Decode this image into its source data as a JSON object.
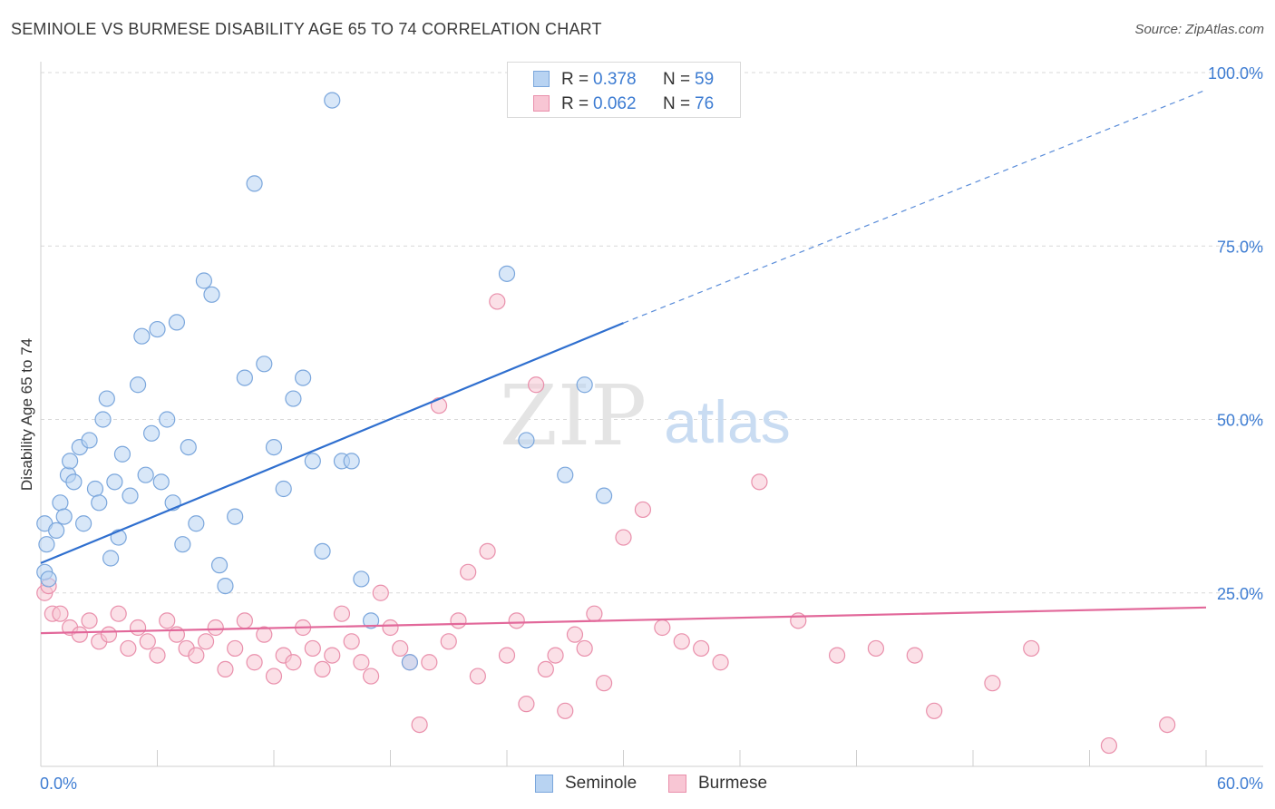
{
  "header": {
    "title": "SEMINOLE VS BURMESE DISABILITY AGE 65 TO 74 CORRELATION CHART",
    "source": "Source: ZipAtlas.com"
  },
  "watermark": {
    "zip": "ZIP",
    "atlas": "atlas"
  },
  "legend_top": {
    "rows": [
      {
        "r_label": "R =",
        "r_value": "0.378",
        "n_label": "N =",
        "n_value": "59"
      },
      {
        "r_label": "R =",
        "r_value": "0.062",
        "n_label": "N =",
        "n_value": "76"
      }
    ]
  },
  "legend_bottom": {
    "items": [
      "Seminole",
      "Burmese"
    ]
  },
  "colors": {
    "seminole_fill": "#b8d3f2",
    "seminole_stroke": "#7aa6dc",
    "seminole_line": "#2f6fcf",
    "burmese_fill": "#f8c6d4",
    "burmese_stroke": "#e98fab",
    "burmese_line": "#e2689a",
    "axis_label": "#3d7cd2",
    "grid": "#d9d9d9"
  },
  "chart_data": {
    "type": "scatter",
    "title": "SEMINOLE VS BURMESE DISABILITY AGE 65 TO 74 CORRELATION CHART",
    "xlabel": "",
    "ylabel": "Disability Age 65 to 74",
    "xlim": [
      0,
      60
    ],
    "ylim": [
      0,
      100
    ],
    "x_tick_labels": [
      "0.0%",
      "60.0%"
    ],
    "y_tick_labels": [
      "100.0%",
      "75.0%",
      "50.0%",
      "25.0%"
    ],
    "y_ticks": [
      100,
      75,
      50,
      25
    ],
    "grid": true,
    "legend_position": "top-center",
    "series": [
      {
        "name": "Seminole",
        "r": 0.378,
        "n": 59,
        "trend": {
          "x": [
            0,
            30
          ],
          "y": [
            29.3,
            63.9
          ],
          "dashed_extension_to_x": 60,
          "dashed_extension_y": 97.5
        },
        "points": [
          [
            0.2,
            28
          ],
          [
            0.3,
            32
          ],
          [
            0.2,
            35
          ],
          [
            0.4,
            27
          ],
          [
            0.8,
            34
          ],
          [
            1.0,
            38
          ],
          [
            1.2,
            36
          ],
          [
            1.4,
            42
          ],
          [
            1.5,
            44
          ],
          [
            1.7,
            41
          ],
          [
            2.0,
            46
          ],
          [
            2.2,
            35
          ],
          [
            2.5,
            47
          ],
          [
            2.8,
            40
          ],
          [
            3.0,
            38
          ],
          [
            3.2,
            50
          ],
          [
            3.4,
            53
          ],
          [
            3.6,
            30
          ],
          [
            3.8,
            41
          ],
          [
            4.0,
            33
          ],
          [
            4.2,
            45
          ],
          [
            4.6,
            39
          ],
          [
            5.0,
            55
          ],
          [
            5.2,
            62
          ],
          [
            5.4,
            42
          ],
          [
            5.7,
            48
          ],
          [
            6.0,
            63
          ],
          [
            6.2,
            41
          ],
          [
            6.5,
            50
          ],
          [
            6.8,
            38
          ],
          [
            7.0,
            64
          ],
          [
            7.3,
            32
          ],
          [
            7.6,
            46
          ],
          [
            8.0,
            35
          ],
          [
            8.4,
            70
          ],
          [
            8.8,
            68
          ],
          [
            9.2,
            29
          ],
          [
            9.5,
            26
          ],
          [
            10.0,
            36
          ],
          [
            10.5,
            56
          ],
          [
            11.0,
            84
          ],
          [
            11.5,
            58
          ],
          [
            12.0,
            46
          ],
          [
            12.5,
            40
          ],
          [
            13.0,
            53
          ],
          [
            13.5,
            56
          ],
          [
            14.0,
            44
          ],
          [
            14.5,
            31
          ],
          [
            15.0,
            96
          ],
          [
            15.5,
            44
          ],
          [
            16.0,
            44
          ],
          [
            16.5,
            27
          ],
          [
            17.0,
            21
          ],
          [
            19.0,
            15
          ],
          [
            24.0,
            71
          ],
          [
            25.0,
            47
          ],
          [
            27.0,
            42
          ],
          [
            28.0,
            55
          ],
          [
            29.0,
            39
          ]
        ]
      },
      {
        "name": "Burmese",
        "r": 0.062,
        "n": 76,
        "trend": {
          "x": [
            0,
            60
          ],
          "y": [
            19.2,
            22.9
          ]
        },
        "points": [
          [
            0.2,
            25
          ],
          [
            0.4,
            26
          ],
          [
            0.6,
            22
          ],
          [
            1.0,
            22
          ],
          [
            1.5,
            20
          ],
          [
            2.0,
            19
          ],
          [
            2.5,
            21
          ],
          [
            3.0,
            18
          ],
          [
            3.5,
            19
          ],
          [
            4.0,
            22
          ],
          [
            4.5,
            17
          ],
          [
            5.0,
            20
          ],
          [
            5.5,
            18
          ],
          [
            6.0,
            16
          ],
          [
            6.5,
            21
          ],
          [
            7.0,
            19
          ],
          [
            7.5,
            17
          ],
          [
            8.0,
            16
          ],
          [
            8.5,
            18
          ],
          [
            9.0,
            20
          ],
          [
            9.5,
            14
          ],
          [
            10.0,
            17
          ],
          [
            10.5,
            21
          ],
          [
            11.0,
            15
          ],
          [
            11.5,
            19
          ],
          [
            12.0,
            13
          ],
          [
            12.5,
            16
          ],
          [
            13.0,
            15
          ],
          [
            13.5,
            20
          ],
          [
            14.0,
            17
          ],
          [
            14.5,
            14
          ],
          [
            15.0,
            16
          ],
          [
            15.5,
            22
          ],
          [
            16.0,
            18
          ],
          [
            16.5,
            15
          ],
          [
            17.0,
            13
          ],
          [
            17.5,
            25
          ],
          [
            18.0,
            20
          ],
          [
            18.5,
            17
          ],
          [
            19.0,
            15
          ],
          [
            19.5,
            6
          ],
          [
            20.0,
            15
          ],
          [
            20.5,
            52
          ],
          [
            21.0,
            18
          ],
          [
            21.5,
            21
          ],
          [
            22.0,
            28
          ],
          [
            22.5,
            13
          ],
          [
            23.0,
            31
          ],
          [
            23.5,
            67
          ],
          [
            24.0,
            16
          ],
          [
            24.5,
            21
          ],
          [
            25.0,
            9
          ],
          [
            25.5,
            55
          ],
          [
            26.0,
            14
          ],
          [
            26.5,
            16
          ],
          [
            27.0,
            8
          ],
          [
            27.5,
            19
          ],
          [
            28.0,
            17
          ],
          [
            28.5,
            22
          ],
          [
            29.0,
            12
          ],
          [
            30.0,
            33
          ],
          [
            31.0,
            37
          ],
          [
            32.0,
            20
          ],
          [
            33.0,
            18
          ],
          [
            34.0,
            17
          ],
          [
            35.0,
            15
          ],
          [
            37.0,
            41
          ],
          [
            39.0,
            21
          ],
          [
            41.0,
            16
          ],
          [
            43.0,
            17
          ],
          [
            45.0,
            16
          ],
          [
            46.0,
            8
          ],
          [
            49.0,
            12
          ],
          [
            51.0,
            17
          ],
          [
            55.0,
            3
          ],
          [
            58.0,
            6
          ]
        ]
      }
    ]
  }
}
